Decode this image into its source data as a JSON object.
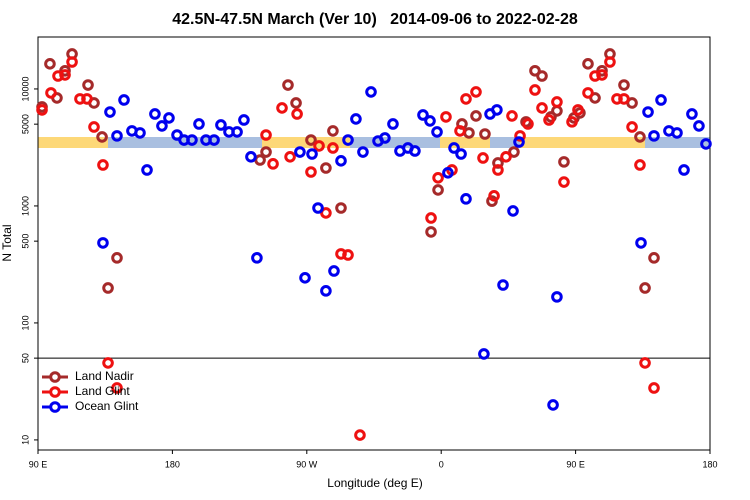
{
  "chart_data": {
    "type": "scatter",
    "title": "42.5N-47.5N March (Ver 10)   2014-09-06 to 2022-02-28",
    "x_label": "Longitude (deg E)",
    "y_label": "N Total",
    "xlim": [
      90,
      540
    ],
    "xticks": [
      {
        "value": 90,
        "label": "90 E"
      },
      {
        "value": 180,
        "label": "180"
      },
      {
        "value": 270,
        "label": "90 W"
      },
      {
        "value": 360,
        "label": "0"
      },
      {
        "value": 450,
        "label": "90 E"
      },
      {
        "value": 540,
        "label": "180"
      }
    ],
    "ylim": [
      8.2,
      27800
    ],
    "ylog": true,
    "yticks": [
      10,
      50,
      100,
      500,
      1000,
      5000,
      10000
    ],
    "hline": 50,
    "legend": "lower left",
    "series": [
      {
        "name": "Land Nadir",
        "color": "#a52a2a",
        "x": [
          92.7,
          98.0,
          102.7,
          108.1,
          112.8,
          123.5,
          127.5,
          132.9,
          136.9,
          142.9,
          238.7,
          242.7,
          257.4,
          262.8,
          272.8,
          282.8,
          287.5,
          292.9,
          353.2,
          357.9,
          373.9,
          378.6,
          383.3,
          389.3,
          394.0,
          398.0,
          408.7,
          416.8,
          422.8,
          427.5,
          433.5,
          437.5,
          442.2,
          448.9,
          452.9,
          458.3,
          463.0,
          467.7,
          473.0,
          482.4,
          487.8,
          493.1,
          496.5,
          502.5
        ],
        "values": [
          7020,
          16400,
          8380,
          14300,
          19900,
          10800,
          7590,
          3890,
          199,
          360,
          2470,
          2890,
          10800,
          7590,
          3660,
          2110,
          4380,
          960,
          600,
          1370,
          5020,
          4210,
          5880,
          4120,
          1100,
          2330,
          2890,
          5230,
          14300,
          12900,
          5770,
          6490,
          2380,
          5650,
          6240,
          16400,
          8380,
          14300,
          19900,
          10800,
          7590,
          3890,
          199,
          360
        ]
      },
      {
        "name": "Land Glint",
        "color": "#ee1111",
        "x": [
          92.7,
          98.7,
          103.4,
          108.1,
          112.8,
          118.1,
          122.8,
          127.5,
          133.5,
          136.9,
          142.9,
          242.7,
          247.4,
          253.4,
          258.8,
          263.5,
          272.8,
          278.2,
          282.8,
          287.5,
          292.9,
          297.6,
          305.6,
          353.2,
          357.9,
          363.2,
          367.2,
          372.6,
          376.6,
          383.3,
          388.0,
          395.4,
          398.0,
          403.4,
          407.4,
          412.8,
          418.1,
          422.8,
          427.5,
          432.2,
          437.5,
          442.2,
          447.6,
          451.6,
          458.3,
          463.0,
          467.7,
          473.0,
          477.7,
          482.4,
          487.8,
          493.1,
          496.5,
          502.5
        ],
        "values": [
          6620,
          9250,
          12900,
          13180,
          17000,
          8220,
          8220,
          4730,
          2240,
          45.5,
          27.8,
          4040,
          2290,
          6880,
          2630,
          6110,
          1950,
          3260,
          871,
          3130,
          389,
          381,
          11.0,
          789,
          1740,
          5770,
          2030,
          4380,
          8220,
          9430,
          2570,
          1220,
          2030,
          2630,
          5880,
          3970,
          5020,
          9800,
          6880,
          5430,
          7740,
          1600,
          5230,
          6620,
          9250,
          12900,
          13180,
          17000,
          8220,
          8220,
          4730,
          2240,
          45.5,
          27.8
        ]
      },
      {
        "name": "Ocean Glint",
        "color": "#0000ee",
        "x": [
          133.5,
          138.2,
          142.9,
          147.6,
          152.9,
          158.3,
          163.0,
          168.3,
          173.0,
          177.7,
          183.1,
          187.8,
          193.1,
          197.8,
          202.5,
          207.9,
          212.5,
          217.9,
          223.3,
          227.9,
          232.6,
          236.6,
          265.4,
          268.8,
          273.5,
          277.5,
          282.8,
          288.2,
          292.9,
          297.6,
          302.9,
          307.6,
          313.0,
          317.7,
          322.3,
          327.7,
          332.4,
          337.7,
          342.4,
          347.8,
          352.5,
          357.2,
          364.5,
          368.6,
          373.3,
          376.6,
          388.6,
          392.7,
          397.3,
          401.4,
          408.1,
          412.1,
          434.9,
          437.5,
          493.8,
          498.5,
          502.5,
          507.2,
          512.5,
          517.9,
          522.6,
          527.9,
          532.6,
          537.3
        ],
        "values": [
          483,
          6350,
          3970,
          8050,
          4380,
          4210,
          2030,
          6110,
          4830,
          5650,
          4040,
          3660,
          3660,
          5020,
          3660,
          3660,
          4920,
          4290,
          4290,
          5430,
          2630,
          360,
          2890,
          243,
          2780,
          960,
          188,
          278,
          2430,
          3660,
          5540,
          2890,
          9430,
          3590,
          3810,
          5020,
          2950,
          3130,
          2950,
          5990,
          5330,
          4290,
          1920,
          3130,
          2780,
          1150,
          54.3,
          6110,
          6620,
          211,
          906,
          3520,
          19.9,
          167,
          483,
          6350,
          3970,
          8050,
          4380,
          4210,
          2030,
          6110,
          4830,
          3390
        ]
      }
    ]
  }
}
